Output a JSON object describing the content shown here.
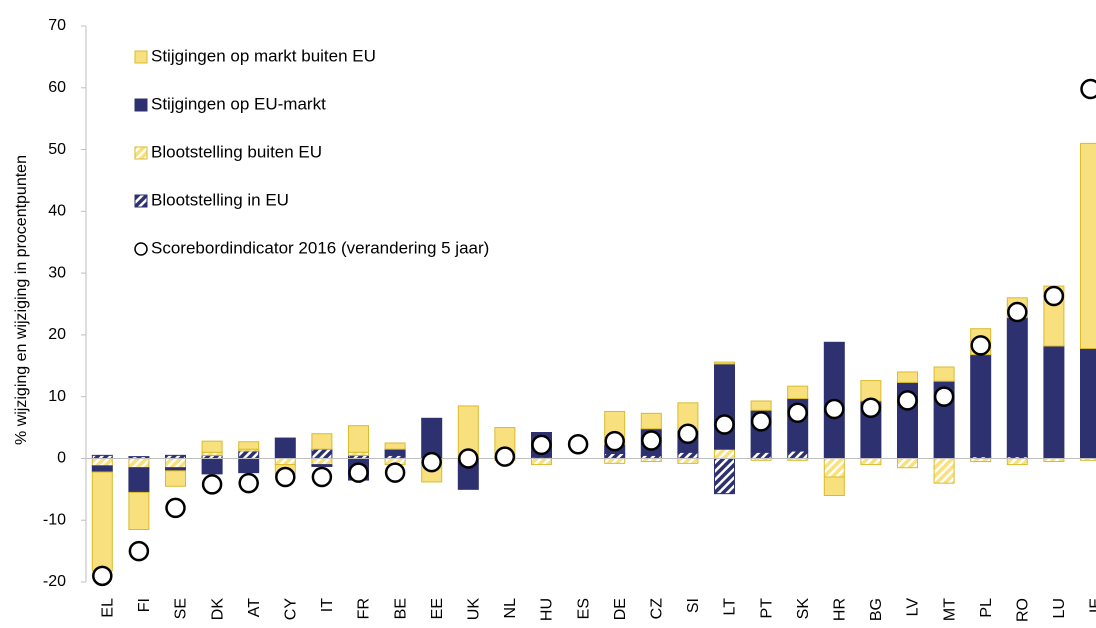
{
  "chart_data": {
    "type": "bar",
    "stacked": true,
    "y_label": "% wijziging en wijziging in procentpunten",
    "categories": [
      "EL",
      "FI",
      "SE",
      "DK",
      "AT",
      "CY",
      "IT",
      "FR",
      "BE",
      "EE",
      "UK",
      "NL",
      "HU",
      "ES",
      "DE",
      "CZ",
      "SI",
      "LT",
      "PT",
      "SK",
      "HR",
      "BG",
      "LV",
      "MT",
      "PL",
      "RO",
      "LU",
      "IE"
    ],
    "ylim": [
      -20,
      70
    ],
    "yticks": [
      -20,
      -10,
      0,
      10,
      20,
      30,
      40,
      50,
      60,
      70
    ],
    "series": [
      {
        "name": "Blootstelling in EU",
        "color": "#2e3170",
        "hatched": true,
        "values": [
          0.5,
          0.3,
          0.5,
          0.5,
          1.2,
          0,
          1.5,
          0.5,
          0.5,
          0,
          0,
          0,
          0.2,
          0,
          0.8,
          0.5,
          1,
          -5.7,
          1,
          1.2,
          0,
          0,
          0,
          0,
          0.3,
          0.3,
          0,
          0
        ]
      },
      {
        "name": "Blootstelling buiten EU",
        "color": "#f9e07f",
        "hatched": true,
        "values": [
          -1.2,
          -1.5,
          -1.5,
          0.5,
          0.3,
          -1,
          -1,
          0.5,
          -1,
          -0.3,
          0,
          -0.3,
          -1,
          0,
          -0.8,
          -0.5,
          -0.8,
          1.5,
          -0.3,
          -0.3,
          -3,
          -1,
          -1.5,
          -4,
          -0.5,
          -1,
          -0.5,
          -0.3
        ]
      },
      {
        "name": "Stijgingen op EU-markt",
        "color": "#2e3170",
        "hatched": false,
        "values": [
          -1,
          -4,
          -0.5,
          -2.5,
          -2.3,
          3.3,
          -0.3,
          -3.5,
          1,
          6.5,
          -5,
          0.2,
          4,
          0,
          1.5,
          4.3,
          3.5,
          13.8,
          6.8,
          8.5,
          18.8,
          9.3,
          12.3,
          12.5,
          16.5,
          22.5,
          18.2,
          17.8
        ]
      },
      {
        "name": "Stijgingen op markt buiten EU",
        "color": "#f9e07f",
        "hatched": false,
        "values": [
          -16,
          -6,
          -2.5,
          1.8,
          1.2,
          -1.5,
          2.5,
          4.3,
          1,
          -3.5,
          8.5,
          4.8,
          0,
          0,
          5.3,
          2.5,
          4.5,
          0.3,
          1.5,
          2,
          -3,
          3.3,
          1.7,
          2.3,
          4.2,
          3.2,
          9.7,
          33.2
        ]
      },
      {
        "name": "Scorebordindicator 2016 (verandering 5 jaar)",
        "type": "scatter",
        "color": "#ffffff",
        "values": [
          -19,
          -15,
          -8,
          -4.2,
          -4,
          -3,
          -3,
          -2.3,
          -2.3,
          -0.6,
          0,
          0.3,
          2.2,
          2.3,
          2.8,
          2.9,
          4,
          5.5,
          6,
          7.4,
          8,
          8.2,
          9.4,
          10,
          18.3,
          23.7,
          26.3,
          59.8
        ]
      }
    ],
    "legend_order": [
      3,
      2,
      1,
      0,
      4
    ]
  }
}
